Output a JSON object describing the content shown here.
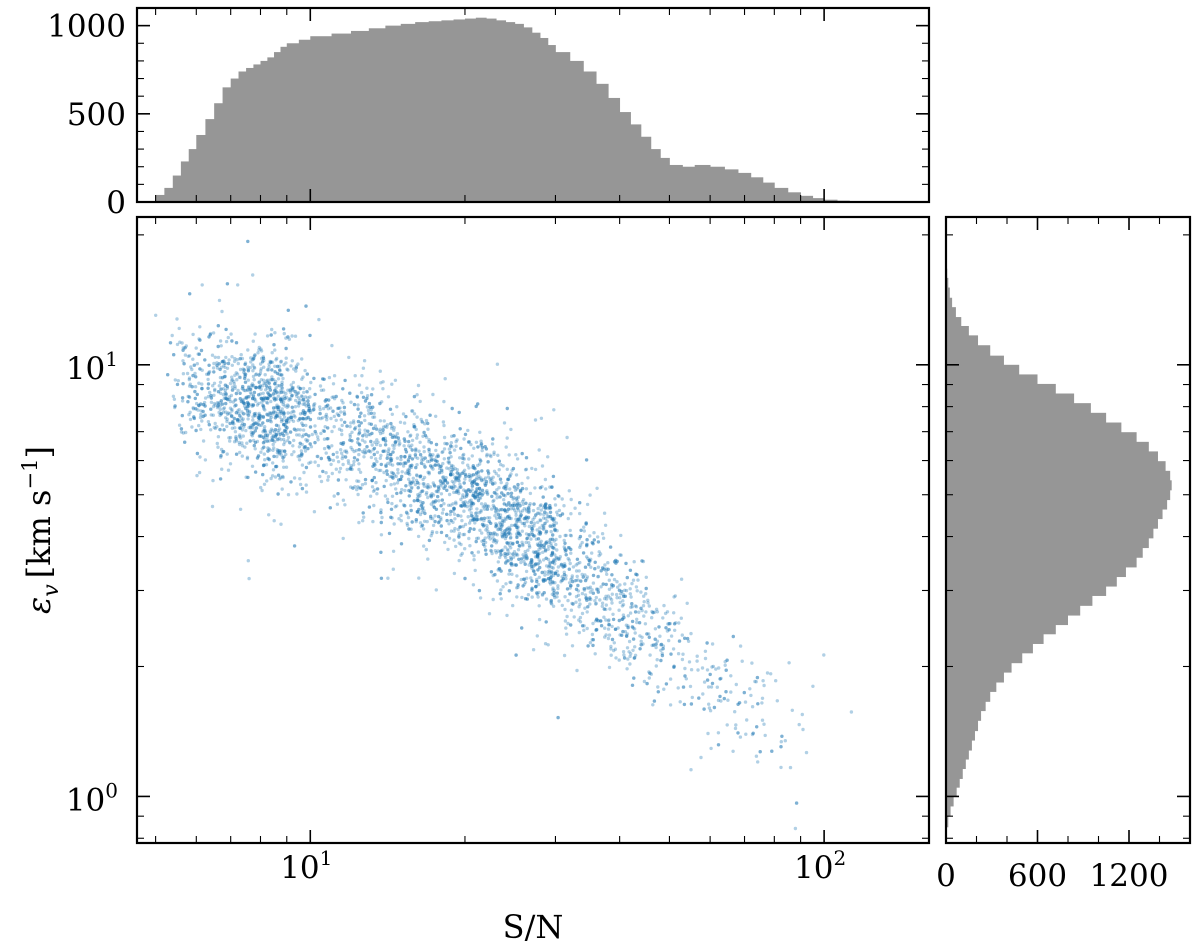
{
  "chart_data": [
    {
      "id": "scatter",
      "type": "scatter",
      "x_scale": "log",
      "y_scale": "log",
      "xlim": [
        4.6,
        160
      ],
      "ylim": [
        0.78,
        22
      ],
      "xlabel": "S/N",
      "ylabel": "ε_v [km s^-1]",
      "ylabel_parts": {
        "symbol": "ε",
        "sub": "v",
        "unit_main": "[km s",
        "unit_sup": "−1",
        "unit_end": "]"
      },
      "x_ticks": [
        {
          "value": 10,
          "label": "10",
          "exp": "1"
        },
        {
          "value": 100,
          "label": "10",
          "exp": "2"
        }
      ],
      "y_ticks": [
        {
          "value": 1,
          "label": "10",
          "exp": "0"
        },
        {
          "value": 10,
          "label": "10",
          "exp": "1"
        }
      ],
      "grid": false,
      "marker_color": "#1f77b4",
      "trend": [
        {
          "x": 5.2,
          "y": 9.2
        },
        {
          "x": 10,
          "y": 7.3
        },
        {
          "x": 20,
          "y": 5.0
        },
        {
          "x": 40,
          "y": 2.8
        },
        {
          "x": 70,
          "y": 1.6
        },
        {
          "x": 100,
          "y": 1.5
        }
      ]
    },
    {
      "id": "top_hist",
      "type": "bar",
      "x_scale": "log",
      "xlim": [
        4.6,
        160
      ],
      "ylim": [
        0,
        1100
      ],
      "y_ticks": [
        0,
        500,
        1000
      ],
      "bar_color": "#969696",
      "bins_x": [
        5.0,
        5.2,
        5.4,
        5.6,
        5.8,
        6.0,
        6.25,
        6.5,
        6.75,
        7.0,
        7.25,
        7.5,
        7.75,
        8.0,
        8.25,
        8.5,
        8.75,
        9.0,
        9.5,
        10,
        11,
        12,
        13,
        14,
        15,
        16,
        17,
        18,
        19,
        20,
        21,
        22,
        23,
        24,
        25,
        26,
        27,
        28,
        29,
        30,
        32,
        34,
        36,
        38,
        40,
        42,
        44,
        46,
        48,
        50,
        53,
        56,
        60,
        64,
        68,
        72,
        76,
        80,
        85,
        90,
        95,
        100,
        106,
        112,
        118,
        125,
        132,
        140,
        150,
        160
      ],
      "counts": [
        40,
        80,
        150,
        230,
        300,
        380,
        470,
        560,
        650,
        700,
        740,
        760,
        780,
        800,
        820,
        850,
        880,
        900,
        920,
        940,
        955,
        970,
        985,
        1000,
        1010,
        1020,
        1025,
        1030,
        1035,
        1040,
        1045,
        1040,
        1030,
        1020,
        1010,
        990,
        960,
        930,
        890,
        850,
        800,
        740,
        670,
        590,
        510,
        440,
        370,
        300,
        250,
        210,
        200,
        210,
        200,
        185,
        165,
        140,
        110,
        80,
        55,
        35,
        22,
        13,
        8,
        5,
        3,
        2,
        1,
        1,
        0
      ]
    },
    {
      "id": "right_hist",
      "type": "bar",
      "orientation": "horizontal",
      "y_scale": "log",
      "ylim": [
        0.78,
        22
      ],
      "xlim": [
        0,
        1600
      ],
      "x_ticks": [
        0,
        600,
        1200
      ],
      "bar_color": "#969696",
      "bins_y": [
        0.85,
        0.9,
        0.95,
        1.0,
        1.05,
        1.1,
        1.16,
        1.22,
        1.28,
        1.35,
        1.42,
        1.5,
        1.58,
        1.66,
        1.75,
        1.84,
        1.94,
        2.04,
        2.15,
        2.26,
        2.38,
        2.5,
        2.63,
        2.77,
        2.92,
        3.07,
        3.23,
        3.4,
        3.58,
        3.77,
        3.97,
        4.18,
        4.4,
        4.63,
        4.87,
        5.13,
        5.4,
        5.68,
        5.98,
        6.3,
        6.63,
        6.98,
        7.35,
        7.74,
        8.15,
        8.58,
        9.03,
        9.5,
        10.0,
        10.5,
        11.1,
        11.7,
        12.3,
        12.9,
        13.6,
        14.3,
        15.1,
        15.9,
        16.7,
        17.6
      ],
      "counts": [
        15,
        30,
        50,
        70,
        90,
        110,
        130,
        150,
        170,
        190,
        210,
        230,
        260,
        290,
        330,
        380,
        430,
        500,
        570,
        640,
        720,
        800,
        880,
        960,
        1050,
        1120,
        1180,
        1250,
        1290,
        1330,
        1360,
        1390,
        1420,
        1450,
        1470,
        1480,
        1470,
        1440,
        1390,
        1330,
        1250,
        1150,
        1050,
        950,
        840,
        720,
        600,
        480,
        380,
        290,
        210,
        150,
        100,
        65,
        40,
        25,
        15,
        8,
        4,
        2
      ]
    }
  ]
}
